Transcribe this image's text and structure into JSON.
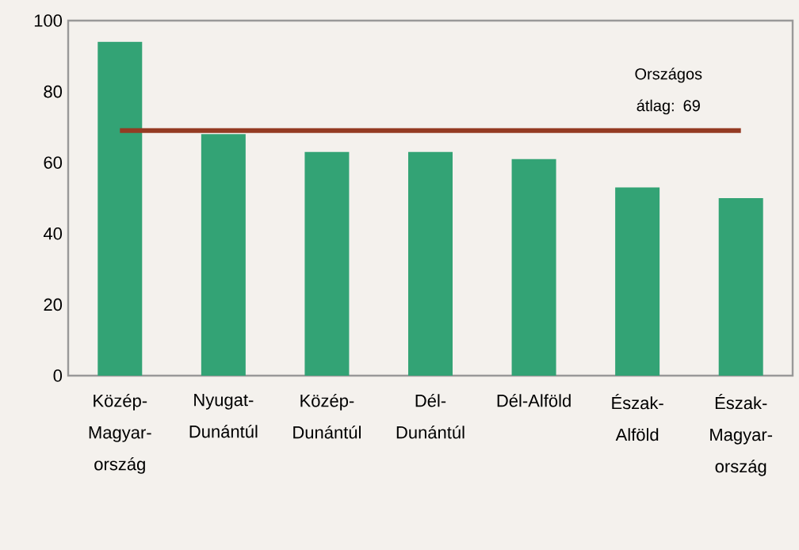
{
  "chart_data": {
    "type": "bar",
    "categories": [
      "Közép-Magyar-ország",
      "Nyugat-Dunántúl",
      "Közép-Dunántúl",
      "Dél-Dunántúl",
      "Dél-Alföld",
      "Észak-Alföld",
      "Észak-Magyar-ország"
    ],
    "values": [
      94,
      68,
      63,
      63,
      61,
      53,
      50
    ],
    "color": "#33a375",
    "ylim": [
      0,
      100
    ],
    "yticks": [
      0,
      20,
      40,
      60,
      80,
      100
    ],
    "grid": false,
    "legend": false,
    "ref_lines": [
      {
        "axis": "y",
        "value": 69,
        "label": "Országos átlag: 69",
        "color": "#943b23"
      }
    ]
  }
}
